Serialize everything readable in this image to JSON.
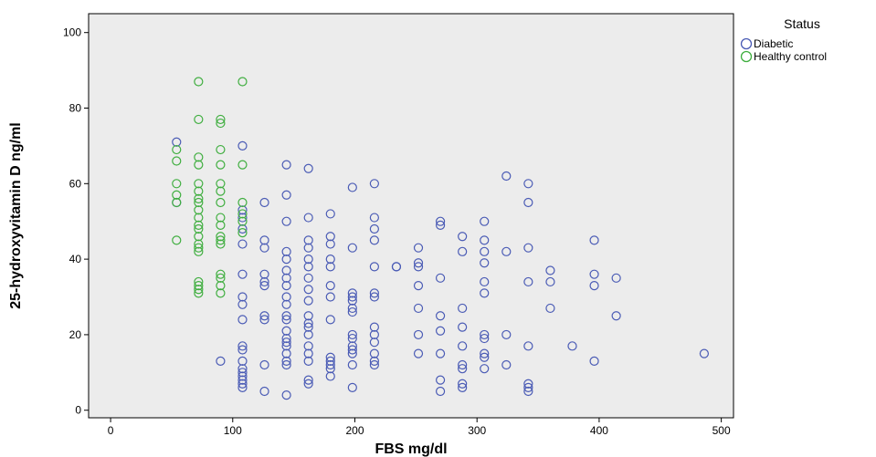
{
  "chart_data": {
    "type": "scatter",
    "xlabel": "FBS mg/dl",
    "ylabel": "25-hydroxyvitamin D ng/ml",
    "xlim": [
      -18,
      510
    ],
    "ylim": [
      -2,
      105
    ],
    "x_ticks": [
      0,
      100,
      200,
      300,
      400,
      500
    ],
    "y_ticks": [
      0,
      20,
      40,
      60,
      80,
      100
    ],
    "grid": false,
    "plot_background": "#ececec",
    "legend": {
      "title": "Status",
      "placement": "right-top",
      "entries": [
        "Diabetic",
        "Healthy control"
      ]
    },
    "series": [
      {
        "name": "Diabetic",
        "color": "#4a5bb5",
        "points": [
          [
            54,
            71
          ],
          [
            54,
            55
          ],
          [
            90,
            13
          ],
          [
            108,
            70
          ],
          [
            108,
            48
          ],
          [
            108,
            44
          ],
          [
            108,
            36
          ],
          [
            108,
            30
          ],
          [
            108,
            28
          ],
          [
            108,
            24
          ],
          [
            108,
            17
          ],
          [
            108,
            16
          ],
          [
            108,
            13
          ],
          [
            108,
            11
          ],
          [
            108,
            10
          ],
          [
            108,
            9
          ],
          [
            108,
            8
          ],
          [
            108,
            7
          ],
          [
            108,
            6
          ],
          [
            108,
            53
          ],
          [
            108,
            51
          ],
          [
            126,
            55
          ],
          [
            126,
            45
          ],
          [
            126,
            43
          ],
          [
            126,
            36
          ],
          [
            126,
            34
          ],
          [
            126,
            33
          ],
          [
            126,
            25
          ],
          [
            126,
            24
          ],
          [
            126,
            12
          ],
          [
            126,
            5
          ],
          [
            144,
            65
          ],
          [
            144,
            57
          ],
          [
            144,
            50
          ],
          [
            144,
            42
          ],
          [
            144,
            40
          ],
          [
            144,
            37
          ],
          [
            144,
            35
          ],
          [
            144,
            33
          ],
          [
            144,
            30
          ],
          [
            144,
            28
          ],
          [
            144,
            25
          ],
          [
            144,
            24
          ],
          [
            144,
            21
          ],
          [
            144,
            19
          ],
          [
            144,
            18
          ],
          [
            144,
            17
          ],
          [
            144,
            15
          ],
          [
            144,
            13
          ],
          [
            144,
            12
          ],
          [
            144,
            4
          ],
          [
            162,
            64
          ],
          [
            162,
            51
          ],
          [
            162,
            45
          ],
          [
            162,
            43
          ],
          [
            162,
            40
          ],
          [
            162,
            38
          ],
          [
            162,
            35
          ],
          [
            162,
            32
          ],
          [
            162,
            29
          ],
          [
            162,
            25
          ],
          [
            162,
            23
          ],
          [
            162,
            22
          ],
          [
            162,
            20
          ],
          [
            162,
            17
          ],
          [
            162,
            15
          ],
          [
            162,
            13
          ],
          [
            162,
            8
          ],
          [
            162,
            7
          ],
          [
            180,
            52
          ],
          [
            180,
            46
          ],
          [
            180,
            44
          ],
          [
            180,
            40
          ],
          [
            180,
            38
          ],
          [
            180,
            33
          ],
          [
            180,
            30
          ],
          [
            180,
            24
          ],
          [
            180,
            14
          ],
          [
            180,
            13
          ],
          [
            180,
            12
          ],
          [
            180,
            11
          ],
          [
            180,
            9
          ],
          [
            198,
            59
          ],
          [
            198,
            43
          ],
          [
            198,
            31
          ],
          [
            198,
            30
          ],
          [
            198,
            29
          ],
          [
            198,
            27
          ],
          [
            198,
            26
          ],
          [
            198,
            20
          ],
          [
            198,
            19
          ],
          [
            198,
            17
          ],
          [
            198,
            16
          ],
          [
            198,
            15
          ],
          [
            198,
            12
          ],
          [
            198,
            6
          ],
          [
            216,
            60
          ],
          [
            216,
            51
          ],
          [
            216,
            48
          ],
          [
            216,
            45
          ],
          [
            216,
            38
          ],
          [
            216,
            31
          ],
          [
            216,
            30
          ],
          [
            216,
            22
          ],
          [
            216,
            20
          ],
          [
            216,
            18
          ],
          [
            216,
            15
          ],
          [
            216,
            13
          ],
          [
            216,
            12
          ],
          [
            234,
            38
          ],
          [
            234,
            38
          ],
          [
            252,
            43
          ],
          [
            252,
            39
          ],
          [
            252,
            38
          ],
          [
            252,
            33
          ],
          [
            252,
            27
          ],
          [
            252,
            20
          ],
          [
            252,
            15
          ],
          [
            270,
            50
          ],
          [
            270,
            49
          ],
          [
            270,
            35
          ],
          [
            270,
            25
          ],
          [
            270,
            21
          ],
          [
            270,
            15
          ],
          [
            270,
            8
          ],
          [
            270,
            5
          ],
          [
            288,
            46
          ],
          [
            288,
            42
          ],
          [
            288,
            27
          ],
          [
            288,
            22
          ],
          [
            288,
            17
          ],
          [
            288,
            12
          ],
          [
            288,
            11
          ],
          [
            288,
            7
          ],
          [
            288,
            6
          ],
          [
            306,
            50
          ],
          [
            306,
            45
          ],
          [
            306,
            42
          ],
          [
            306,
            39
          ],
          [
            306,
            34
          ],
          [
            306,
            31
          ],
          [
            306,
            20
          ],
          [
            306,
            19
          ],
          [
            306,
            15
          ],
          [
            306,
            14
          ],
          [
            306,
            11
          ],
          [
            324,
            62
          ],
          [
            324,
            42
          ],
          [
            324,
            20
          ],
          [
            324,
            12
          ],
          [
            342,
            60
          ],
          [
            342,
            55
          ],
          [
            342,
            43
          ],
          [
            342,
            34
          ],
          [
            342,
            17
          ],
          [
            342,
            7
          ],
          [
            342,
            6
          ],
          [
            342,
            5
          ],
          [
            360,
            37
          ],
          [
            360,
            34
          ],
          [
            360,
            27
          ],
          [
            378,
            17
          ],
          [
            396,
            45
          ],
          [
            396,
            36
          ],
          [
            396,
            33
          ],
          [
            396,
            13
          ],
          [
            414,
            35
          ],
          [
            414,
            25
          ],
          [
            486,
            15
          ]
        ]
      },
      {
        "name": "Healthy control",
        "color": "#3fae3f",
        "points": [
          [
            54,
            69
          ],
          [
            54,
            66
          ],
          [
            54,
            60
          ],
          [
            54,
            57
          ],
          [
            54,
            55
          ],
          [
            54,
            45
          ],
          [
            72,
            87
          ],
          [
            72,
            77
          ],
          [
            72,
            67
          ],
          [
            72,
            65
          ],
          [
            72,
            60
          ],
          [
            72,
            58
          ],
          [
            72,
            56
          ],
          [
            72,
            55
          ],
          [
            72,
            53
          ],
          [
            72,
            51
          ],
          [
            72,
            49
          ],
          [
            72,
            48
          ],
          [
            72,
            46
          ],
          [
            72,
            44
          ],
          [
            72,
            43
          ],
          [
            72,
            42
          ],
          [
            72,
            34
          ],
          [
            72,
            33
          ],
          [
            72,
            32
          ],
          [
            72,
            31
          ],
          [
            90,
            77
          ],
          [
            90,
            76
          ],
          [
            90,
            69
          ],
          [
            90,
            65
          ],
          [
            90,
            60
          ],
          [
            90,
            58
          ],
          [
            90,
            55
          ],
          [
            90,
            51
          ],
          [
            90,
            49
          ],
          [
            90,
            46
          ],
          [
            90,
            45
          ],
          [
            90,
            44
          ],
          [
            90,
            36
          ],
          [
            90,
            35
          ],
          [
            90,
            33
          ],
          [
            90,
            31
          ],
          [
            108,
            87
          ],
          [
            108,
            65
          ],
          [
            108,
            55
          ],
          [
            108,
            52
          ],
          [
            108,
            50
          ],
          [
            108,
            47
          ]
        ]
      }
    ]
  }
}
